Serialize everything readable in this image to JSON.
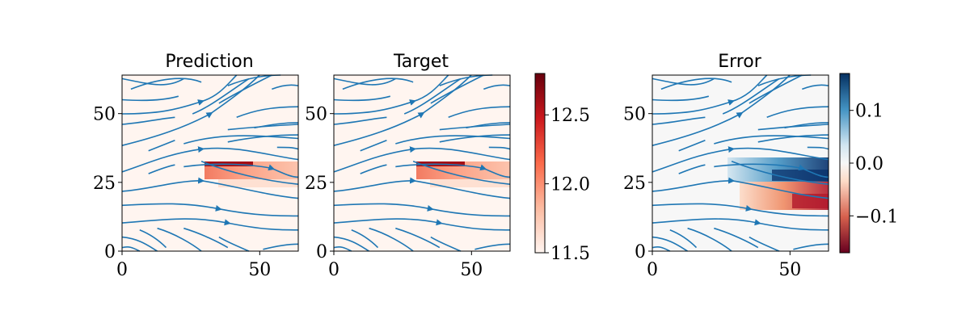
{
  "chart_data": [
    {
      "type": "heatmap",
      "title": "Prediction",
      "xlim": [
        0,
        64
      ],
      "ylim": [
        0,
        64
      ],
      "xticks": [
        "0",
        "50"
      ],
      "yticks": [
        "0",
        "25",
        "50"
      ],
      "overlay": "streamlines",
      "colormap": "Reds",
      "feature": {
        "x_start": 30,
        "x_end": 64,
        "y_top": 31,
        "y_bottom": 26,
        "peak": 12.7,
        "background": 11.5
      }
    },
    {
      "type": "heatmap",
      "title": "Target",
      "xlim": [
        0,
        64
      ],
      "ylim": [
        0,
        64
      ],
      "xticks": [
        "0",
        "50"
      ],
      "yticks": [
        "0",
        "25",
        "50"
      ],
      "overlay": "streamlines",
      "colormap": "Reds",
      "feature": {
        "x_start": 30,
        "x_end": 64,
        "y_top": 31,
        "y_bottom": 26,
        "peak": 12.7,
        "background": 11.5
      },
      "colorbar": {
        "min": 11.5,
        "max": 12.8,
        "ticks": [
          "11.5",
          "12.0",
          "12.5"
        ]
      }
    },
    {
      "type": "heatmap",
      "title": "Error",
      "xlim": [
        0,
        64
      ],
      "ylim": [
        0,
        64
      ],
      "xticks": [
        "0",
        "50"
      ],
      "yticks": [
        "0",
        "25",
        "50"
      ],
      "overlay": "streamlines",
      "colormap": "RdBu",
      "bands": [
        {
          "sign": "positive",
          "value": 0.12,
          "x_start": 45,
          "x_end": 64,
          "y_center": 26
        },
        {
          "sign": "negative",
          "value": -0.14,
          "x_start": 48,
          "x_end": 64,
          "y_center": 19
        }
      ],
      "colorbar": {
        "min": -0.17,
        "max": 0.17,
        "ticks": [
          "0.1",
          "0.0",
          "−0.1"
        ]
      }
    }
  ],
  "colors": {
    "streamline": "#1f77b4",
    "reds_low": "#fff5f0",
    "reds_high": "#67000d",
    "rdbu_neg": "#67001f",
    "rdbu_mid": "#f7f7f7",
    "rdbu_pos": "#053061"
  }
}
